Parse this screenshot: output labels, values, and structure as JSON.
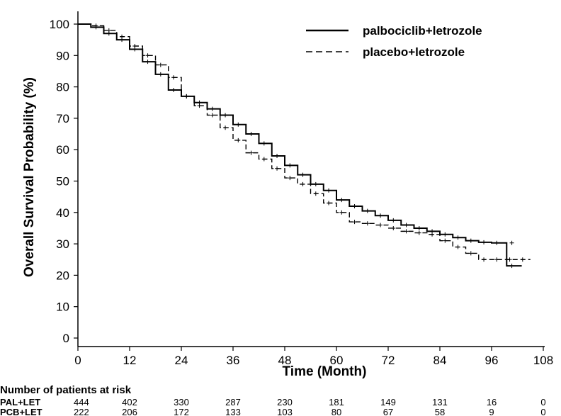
{
  "chart_data": {
    "type": "line",
    "xlabel": "Time (Month)",
    "ylabel": "Overall Survival Probability (%)",
    "xlim": [
      0,
      108
    ],
    "ylim": [
      0,
      100
    ],
    "xticks": [
      "0",
      "12",
      "24",
      "36",
      "48",
      "60",
      "72",
      "84",
      "96",
      "108"
    ],
    "yticks": [
      "0",
      "10",
      "20",
      "30",
      "40",
      "50",
      "60",
      "70",
      "80",
      "90",
      "100"
    ],
    "grid": false,
    "legend_position": "top-right",
    "series": [
      {
        "name": "palbociclib+letrozole",
        "line_style": "solid",
        "color": "#000000",
        "x": [
          0,
          3,
          6,
          9,
          12,
          15,
          18,
          21,
          24,
          27,
          30,
          33,
          36,
          39,
          42,
          45,
          48,
          51,
          54,
          57,
          60,
          63,
          66,
          69,
          72,
          75,
          78,
          81,
          84,
          87,
          90,
          93,
          96,
          99.5,
          99.5,
          103
        ],
        "y": [
          100,
          99,
          97,
          95,
          92,
          88,
          84,
          79,
          77,
          75,
          73,
          71,
          68,
          65,
          62,
          58,
          55,
          52,
          49,
          47,
          44,
          42,
          40.5,
          39,
          37.5,
          36,
          35,
          34,
          33,
          32,
          31,
          30.5,
          30.3,
          30.3,
          23,
          23
        ]
      },
      {
        "name": "placebo+letrozole",
        "line_style": "dashed",
        "color": "#000000",
        "x": [
          0,
          3,
          6,
          9,
          12,
          15,
          18,
          21,
          24,
          27,
          30,
          33,
          36,
          39,
          42,
          45,
          48,
          51,
          54,
          57,
          60,
          63,
          66,
          69,
          72,
          75,
          78,
          81,
          84,
          87,
          90,
          93,
          96,
          99,
          102,
          105
        ],
        "y": [
          100,
          99.5,
          98,
          96,
          93,
          90,
          87,
          83,
          77,
          74,
          71,
          67,
          63,
          59,
          57,
          54,
          51,
          49,
          46,
          43,
          40,
          37,
          36.5,
          36,
          35,
          34,
          33.5,
          33,
          31,
          29,
          27,
          25,
          25,
          25,
          25,
          25
        ]
      }
    ],
    "risk_table": {
      "title": "Number of patients at risk",
      "times": [
        0,
        12,
        24,
        36,
        48,
        60,
        72,
        84,
        96,
        108
      ],
      "rows": [
        {
          "label": "PAL+LET",
          "values": [
            "444",
            "402",
            "330",
            "287",
            "230",
            "181",
            "149",
            "131",
            "16",
            "0"
          ]
        },
        {
          "label": "PCB+LET",
          "values": [
            "222",
            "206",
            "172",
            "133",
            "103",
            "80",
            "67",
            "58",
            "9",
            "0"
          ]
        }
      ]
    }
  }
}
